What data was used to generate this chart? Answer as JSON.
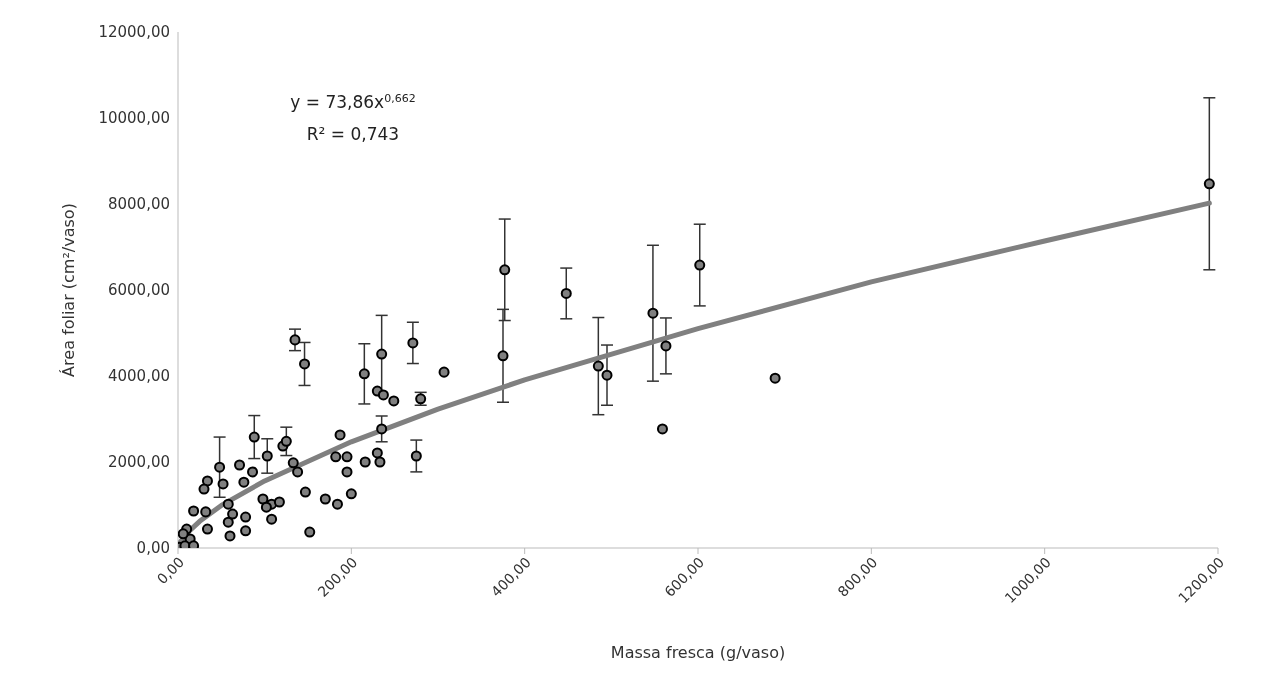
{
  "chart_data": {
    "type": "scatter",
    "xlabel": "Massa fresca (g/vaso)",
    "ylabel": "Área foliar (cm²/vaso)",
    "annotations": [
      "y = 73,86x$^{0,662}$",
      "R² = 0,743"
    ],
    "xlim": [
      0,
      1200
    ],
    "xticks": [
      {
        "value": 0,
        "label": "0,00"
      },
      {
        "value": 200,
        "label": "200,00"
      },
      {
        "value": 400,
        "label": "400,00"
      },
      {
        "value": 600,
        "label": "600,00"
      },
      {
        "value": 800,
        "label": "800,00"
      },
      {
        "value": 1000,
        "label": "1000,00"
      },
      {
        "value": 1200,
        "label": "1200,00"
      }
    ],
    "ylim": [
      0,
      12000
    ],
    "yticks": [
      {
        "value": 0,
        "label": "0,00"
      },
      {
        "value": 2000,
        "label": "2000,00"
      },
      {
        "value": 4000,
        "label": "4000,00"
      },
      {
        "value": 6000,
        "label": "6000,00"
      },
      {
        "value": 8000,
        "label": "8000,00"
      },
      {
        "value": 10000,
        "label": "10000,00"
      },
      {
        "value": 12000,
        "label": "12000,00"
      }
    ],
    "grid": false,
    "legend": false,
    "series": [
      {
        "type": "line",
        "color": "#808080",
        "line_style": "solid",
        "marker": "none",
        "x": [
          2,
          10,
          25,
          50,
          100,
          200,
          300,
          400,
          600,
          800,
          1000,
          1190
        ],
        "values": [
          120,
          340,
          620,
          990,
          1560,
          2470,
          3230,
          3910,
          5100,
          6190,
          7140,
          8020
        ]
      },
      {
        "type": "scatter",
        "color": "#808080",
        "marker": "circle",
        "x": [
          1190,
          602,
          548,
          563,
          485,
          495,
          559,
          689,
          448,
          377,
          375,
          271,
          235,
          215,
          230,
          237,
          249,
          307,
          280,
          235,
          187,
          275,
          230,
          233,
          195,
          182,
          216,
          195,
          135,
          146,
          200,
          184,
          170,
          147,
          152,
          138,
          133,
          121,
          125,
          103,
          88,
          48,
          71,
          86,
          34,
          30,
          52,
          76,
          18,
          32,
          58,
          98,
          108,
          117,
          102,
          108,
          78,
          58,
          60,
          78,
          34,
          63,
          10,
          14,
          6,
          2,
          8,
          18
        ],
        "values": [
          8470,
          6580,
          5460,
          4700,
          4230,
          4020,
          2770,
          3950,
          5920,
          6470,
          4470,
          4770,
          4510,
          4050,
          3650,
          3560,
          3420,
          4090,
          3470,
          2770,
          2630,
          2140,
          2210,
          2000,
          2120,
          2120,
          2000,
          1770,
          4840,
          4280,
          1260,
          1020,
          1140,
          1300,
          370,
          1770,
          1980,
          2370,
          2480,
          2140,
          2580,
          1880,
          1930,
          1770,
          1560,
          1370,
          1490,
          1530,
          860,
          840,
          1020,
          1140,
          1020,
          1070,
          950,
          670,
          720,
          600,
          280,
          400,
          440,
          790,
          440,
          210,
          330,
          20,
          50,
          50
        ],
        "errors": [
          2000,
          950,
          1580,
          650,
          1130,
          700,
          null,
          null,
          590,
          1180,
          1080,
          480,
          900,
          700,
          null,
          null,
          null,
          null,
          150,
          300,
          null,
          370,
          null,
          null,
          null,
          null,
          null,
          null,
          250,
          500,
          null,
          null,
          null,
          null,
          null,
          null,
          null,
          null,
          330,
          400,
          500,
          700,
          null,
          null,
          null,
          null,
          null,
          null,
          null,
          null,
          null,
          null,
          null,
          null,
          null,
          null,
          null,
          null,
          null,
          null,
          null,
          null,
          null,
          null,
          null,
          null,
          null,
          null
        ]
      }
    ]
  }
}
